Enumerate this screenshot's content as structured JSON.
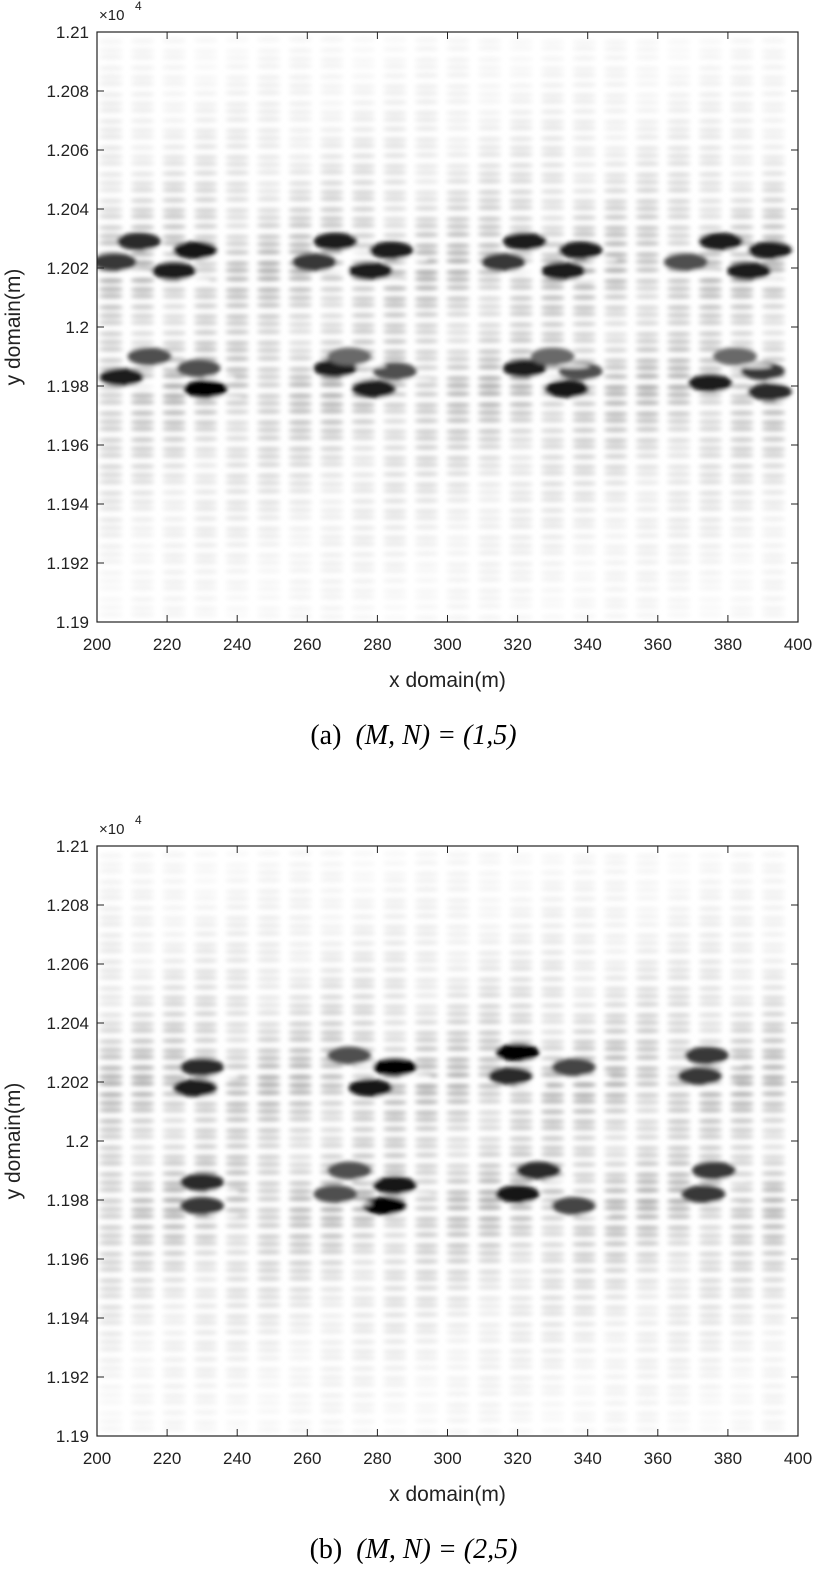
{
  "chart_data": [
    {
      "type": "heatmap",
      "caption_tag": "(a)",
      "caption_math": "(M, N) = (1,5)",
      "xlabel": "x domain(m)",
      "ylabel": "y domain(m)",
      "y_exponent_label": "×10",
      "y_exponent_power": "4",
      "xlim": [
        200,
        400
      ],
      "ylim": [
        11900,
        12100
      ],
      "x_ticks": [
        "200",
        "220",
        "240",
        "260",
        "280",
        "300",
        "320",
        "340",
        "360",
        "380",
        "400"
      ],
      "y_ticks": [
        "1.19",
        "1.192",
        "1.194",
        "1.196",
        "1.198",
        "1.2",
        "1.202",
        "1.204",
        "1.206",
        "1.208",
        "1.21"
      ],
      "colormap": "gray (white = 0, black = max)",
      "dark_bands_y": [
        11980,
        12020
      ],
      "blob_centers": [
        {
          "x": 212,
          "y": 12029,
          "v": 0.85
        },
        {
          "x": 228,
          "y": 12026,
          "v": 0.95
        },
        {
          "x": 205,
          "y": 12022,
          "v": 0.8
        },
        {
          "x": 222,
          "y": 12019,
          "v": 0.9
        },
        {
          "x": 215,
          "y": 11990,
          "v": 0.7
        },
        {
          "x": 207,
          "y": 11983,
          "v": 0.9
        },
        {
          "x": 229,
          "y": 11986,
          "v": 0.7
        },
        {
          "x": 231,
          "y": 11979,
          "v": 1.0
        },
        {
          "x": 268,
          "y": 12029,
          "v": 0.9
        },
        {
          "x": 284,
          "y": 12026,
          "v": 0.9
        },
        {
          "x": 262,
          "y": 12022,
          "v": 0.8
        },
        {
          "x": 278,
          "y": 12019,
          "v": 0.9
        },
        {
          "x": 268,
          "y": 11986,
          "v": 0.9
        },
        {
          "x": 285,
          "y": 11985,
          "v": 0.7
        },
        {
          "x": 279,
          "y": 11979,
          "v": 0.9
        },
        {
          "x": 272,
          "y": 11990,
          "v": 0.6
        },
        {
          "x": 322,
          "y": 12029,
          "v": 0.9
        },
        {
          "x": 338,
          "y": 12026,
          "v": 0.9
        },
        {
          "x": 316,
          "y": 12022,
          "v": 0.8
        },
        {
          "x": 333,
          "y": 12019,
          "v": 0.9
        },
        {
          "x": 322,
          "y": 11986,
          "v": 0.9
        },
        {
          "x": 338,
          "y": 11985,
          "v": 0.7
        },
        {
          "x": 334,
          "y": 11979,
          "v": 0.95
        },
        {
          "x": 330,
          "y": 11990,
          "v": 0.6
        },
        {
          "x": 378,
          "y": 12029,
          "v": 0.9
        },
        {
          "x": 392,
          "y": 12026,
          "v": 0.9
        },
        {
          "x": 368,
          "y": 12022,
          "v": 0.7
        },
        {
          "x": 386,
          "y": 12019,
          "v": 0.9
        },
        {
          "x": 375,
          "y": 11981,
          "v": 0.9
        },
        {
          "x": 390,
          "y": 11985,
          "v": 0.8
        },
        {
          "x": 392,
          "y": 11978,
          "v": 0.85
        },
        {
          "x": 382,
          "y": 11990,
          "v": 0.6
        }
      ]
    },
    {
      "type": "heatmap",
      "caption_tag": "(b)",
      "caption_math": "(M, N) = (2,5)",
      "xlabel": "x domain(m)",
      "ylabel": "y domain(m)",
      "y_exponent_label": "×10",
      "y_exponent_power": "4",
      "xlim": [
        200,
        400
      ],
      "ylim": [
        11900,
        12100
      ],
      "x_ticks": [
        "200",
        "220",
        "240",
        "260",
        "280",
        "300",
        "320",
        "340",
        "360",
        "380",
        "400"
      ],
      "y_ticks": [
        "1.19",
        "1.192",
        "1.194",
        "1.196",
        "1.198",
        "1.2",
        "1.202",
        "1.204",
        "1.206",
        "1.208",
        "1.21"
      ],
      "colormap": "gray (white = 0, black = max)",
      "dark_bands_y": [
        11980,
        12020
      ],
      "blob_centers": [
        {
          "x": 230,
          "y": 12025,
          "v": 0.85
        },
        {
          "x": 228,
          "y": 12018,
          "v": 0.9
        },
        {
          "x": 230,
          "y": 11986,
          "v": 0.85
        },
        {
          "x": 230,
          "y": 11978,
          "v": 0.8
        },
        {
          "x": 272,
          "y": 12029,
          "v": 0.7
        },
        {
          "x": 285,
          "y": 12025,
          "v": 1.0
        },
        {
          "x": 278,
          "y": 12018,
          "v": 0.95
        },
        {
          "x": 272,
          "y": 11990,
          "v": 0.7
        },
        {
          "x": 285,
          "y": 11985,
          "v": 0.95
        },
        {
          "x": 282,
          "y": 11978,
          "v": 1.0
        },
        {
          "x": 268,
          "y": 11982,
          "v": 0.7
        },
        {
          "x": 320,
          "y": 12030,
          "v": 1.0
        },
        {
          "x": 336,
          "y": 12025,
          "v": 0.75
        },
        {
          "x": 318,
          "y": 12022,
          "v": 0.85
        },
        {
          "x": 326,
          "y": 11990,
          "v": 0.85
        },
        {
          "x": 320,
          "y": 11982,
          "v": 0.95
        },
        {
          "x": 336,
          "y": 11978,
          "v": 0.75
        },
        {
          "x": 374,
          "y": 12029,
          "v": 0.8
        },
        {
          "x": 372,
          "y": 12022,
          "v": 0.8
        },
        {
          "x": 376,
          "y": 11990,
          "v": 0.8
        },
        {
          "x": 373,
          "y": 11982,
          "v": 0.8
        }
      ]
    }
  ]
}
